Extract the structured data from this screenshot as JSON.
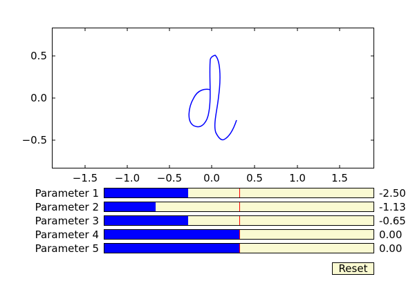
{
  "plot": {
    "x_ticks": [
      "−1.5",
      "−1.0",
      "−0.5",
      "0.0",
      "0.5",
      "1.0",
      "1.5"
    ],
    "y_ticks": [
      "0.5",
      "0.0",
      "−0.5"
    ],
    "curve_color": "#0000ff"
  },
  "sliders": [
    {
      "label": "Parameter 1",
      "value": "-2.50",
      "fill_fraction": 0.31
    },
    {
      "label": "Parameter 2",
      "value": "-1.13",
      "fill_fraction": 0.19
    },
    {
      "label": "Parameter 3",
      "value": "-0.65",
      "fill_fraction": 0.31
    },
    {
      "label": "Parameter 4",
      "value": "0.00",
      "fill_fraction": 0.5
    },
    {
      "label": "Parameter 5",
      "value": "0.00",
      "fill_fraction": 0.5
    }
  ],
  "slider_fill_color": "#0000ff",
  "slider_track_color": "#fafad2",
  "slider_marker_color": "#ff0000",
  "reset": {
    "label": "Reset"
  }
}
